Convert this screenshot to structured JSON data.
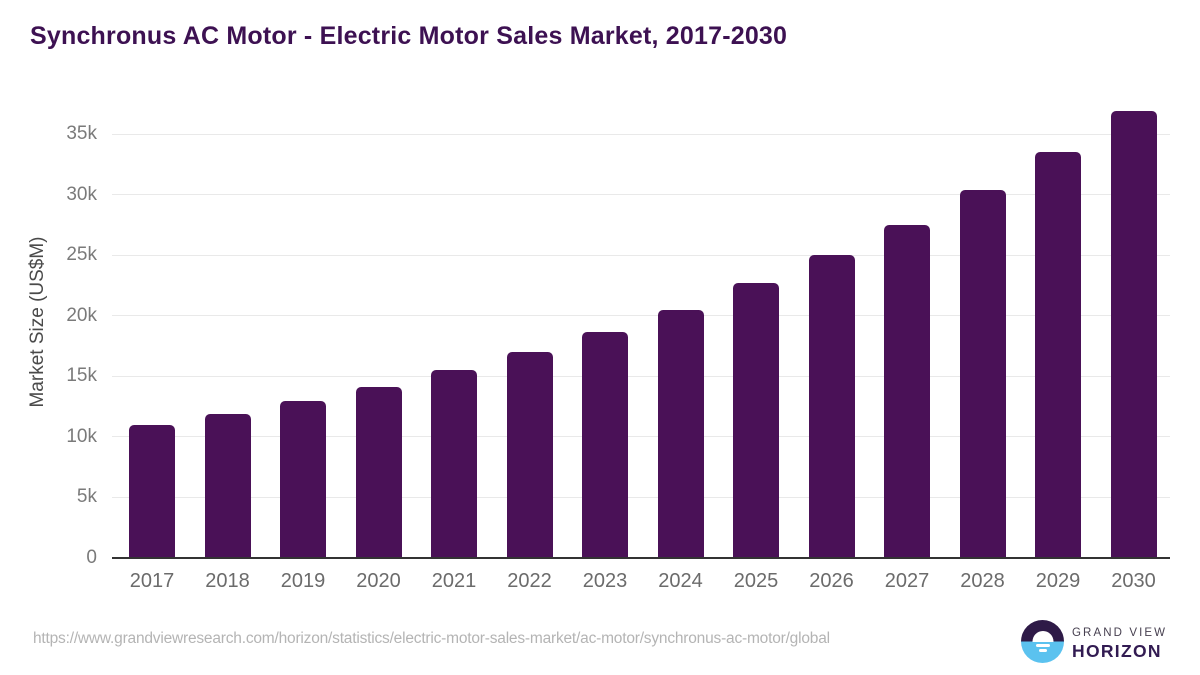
{
  "chart_data": {
    "type": "bar",
    "title": "Synchronus AC Motor - Electric Motor Sales Market, 2017-2030",
    "categories": [
      "2017",
      "2018",
      "2019",
      "2020",
      "2021",
      "2022",
      "2023",
      "2024",
      "2025",
      "2026",
      "2027",
      "2028",
      "2029",
      "2030"
    ],
    "values": [
      11000,
      11900,
      12950,
      14100,
      15500,
      17000,
      18650,
      20500,
      22700,
      25000,
      27500,
      30400,
      33500,
      36900
    ],
    "xlabel": "",
    "ylabel": "Market Size (US$M)",
    "ylim": [
      0,
      37500
    ],
    "yticks": [
      {
        "value": 0,
        "label": "0"
      },
      {
        "value": 5000,
        "label": "5k"
      },
      {
        "value": 10000,
        "label": "10k"
      },
      {
        "value": 15000,
        "label": "15k"
      },
      {
        "value": 20000,
        "label": "20k"
      },
      {
        "value": 25000,
        "label": "25k"
      },
      {
        "value": 30000,
        "label": "30k"
      },
      {
        "value": 35000,
        "label": "35k"
      }
    ],
    "grid": true,
    "legend": false,
    "bar_color": "#4a1157",
    "title_color": "#3d1152"
  },
  "footer": {
    "source_url": "https://www.grandviewresearch.com/horizon/statistics/electric-motor-sales-market/ac-motor/synchronus-ac-motor/global",
    "logo": {
      "line1": "GRAND VIEW",
      "line2": "HORIZON",
      "circle_top_color": "#2e1a47",
      "circle_bottom_color": "#5bc2ef"
    }
  }
}
